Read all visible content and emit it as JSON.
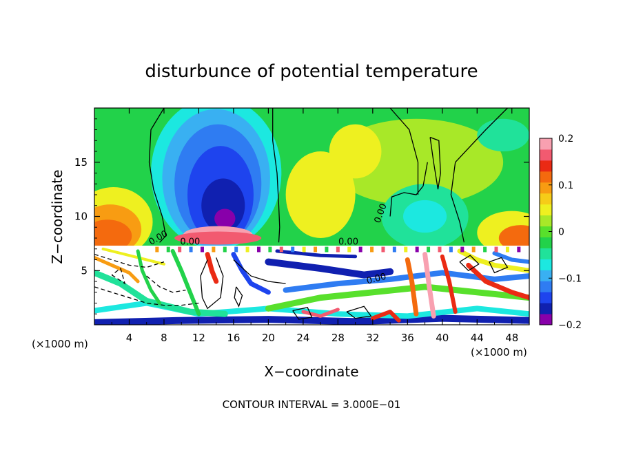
{
  "chart_data": {
    "type": "heatmap",
    "title": "disturbunce of potential temperature",
    "xlabel": "X−coordinate",
    "ylabel": "Z−coordinate",
    "x_unit_left": "(×1000 m)",
    "x_unit_right": "(×1000 m)",
    "footer": "CONTOUR INTERVAL = 3.000E−01",
    "xlim": [
      0,
      50
    ],
    "ylim": [
      0,
      20
    ],
    "x_ticks": [
      4,
      8,
      12,
      16,
      20,
      24,
      28,
      32,
      36,
      40,
      44,
      48
    ],
    "y_ticks": [
      5,
      10,
      15
    ],
    "colorbar": {
      "range": [
        -0.2,
        0.2
      ],
      "ticks": [
        0.2,
        0.1,
        0,
        -0.1,
        -0.2
      ],
      "tick_labels": [
        "0.2",
        "0.1",
        "0",
        "−0.1",
        "−0.2"
      ],
      "colors": [
        "#8800aa",
        "#1020b0",
        "#1e44ee",
        "#2f7cf2",
        "#39b0f2",
        "#1ce8e0",
        "#20e29a",
        "#22d24a",
        "#58e02c",
        "#a8e828",
        "#eef020",
        "#f6cc18",
        "#f89c12",
        "#f46a0e",
        "#ea2a14",
        "#f25a70",
        "#f8a0b0"
      ]
    },
    "contour_labels": [
      {
        "text": "0.00",
        "x": 7.5,
        "z": 7.8,
        "rotate": -30
      },
      {
        "text": "0.00",
        "x": 11.0,
        "z": 7.4,
        "rotate": 0
      },
      {
        "text": "0.00",
        "x": 29.2,
        "z": 7.4,
        "rotate": 0
      },
      {
        "text": "0.00",
        "x": 33.2,
        "z": 10.2,
        "rotate": -70
      },
      {
        "text": "0.00",
        "x": 32.5,
        "z": 4.0,
        "rotate": -15
      }
    ],
    "grid": false,
    "legend": "right"
  }
}
